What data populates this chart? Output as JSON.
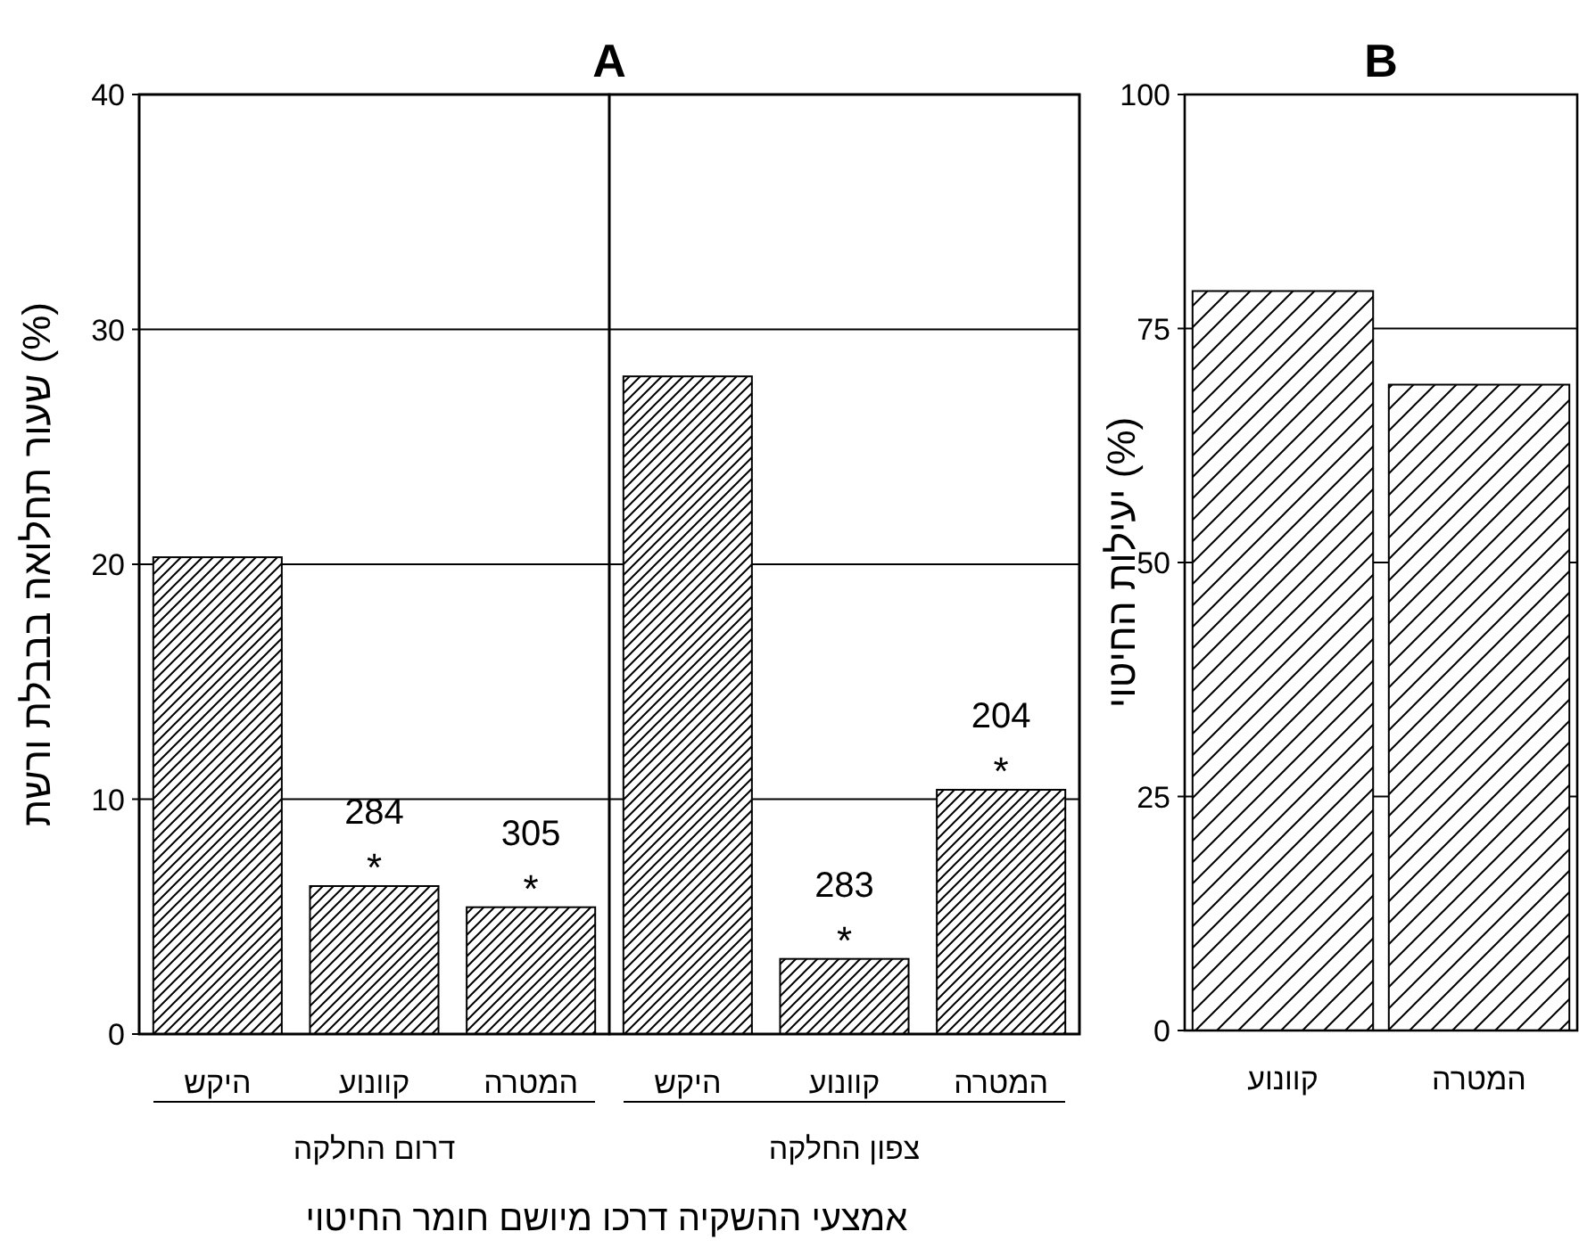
{
  "chart_data": [
    {
      "type": "bar",
      "title": "A",
      "ylabel": "שעור תחלואה בבבלת ורשת (%)",
      "xlabel": "אמצעי ההשקיה דרכו מיושם חומר החיטוי",
      "categories": [
        "היקש",
        "קוונוע",
        "המטרה",
        "היקש",
        "קוונוע",
        "המטרה"
      ],
      "series": [
        {
          "color": "#000000",
          "values": [
            20.3,
            6.3,
            5.4,
            28.0,
            3.2,
            10.4
          ]
        }
      ],
      "value_labels": [
        null,
        "284",
        "305",
        null,
        "283",
        "204"
      ],
      "ylim": [
        0,
        40
      ],
      "yticks": [
        0,
        10,
        20,
        30,
        40
      ],
      "grid": "y",
      "annotations": [
        "דרום החלקה",
        "צפון החלקה",
        "*",
        "*",
        "*",
        "*"
      ]
    },
    {
      "type": "bar",
      "title": "B",
      "ylabel": "יעילות החיטוי (%)",
      "categories": [
        "קוונוע",
        "המטרה"
      ],
      "series": [
        {
          "color": "#000000",
          "values": [
            79,
            69
          ]
        }
      ],
      "ylim": [
        0,
        100
      ],
      "yticks": [
        0,
        25,
        50,
        75,
        100
      ],
      "grid": "y"
    }
  ]
}
